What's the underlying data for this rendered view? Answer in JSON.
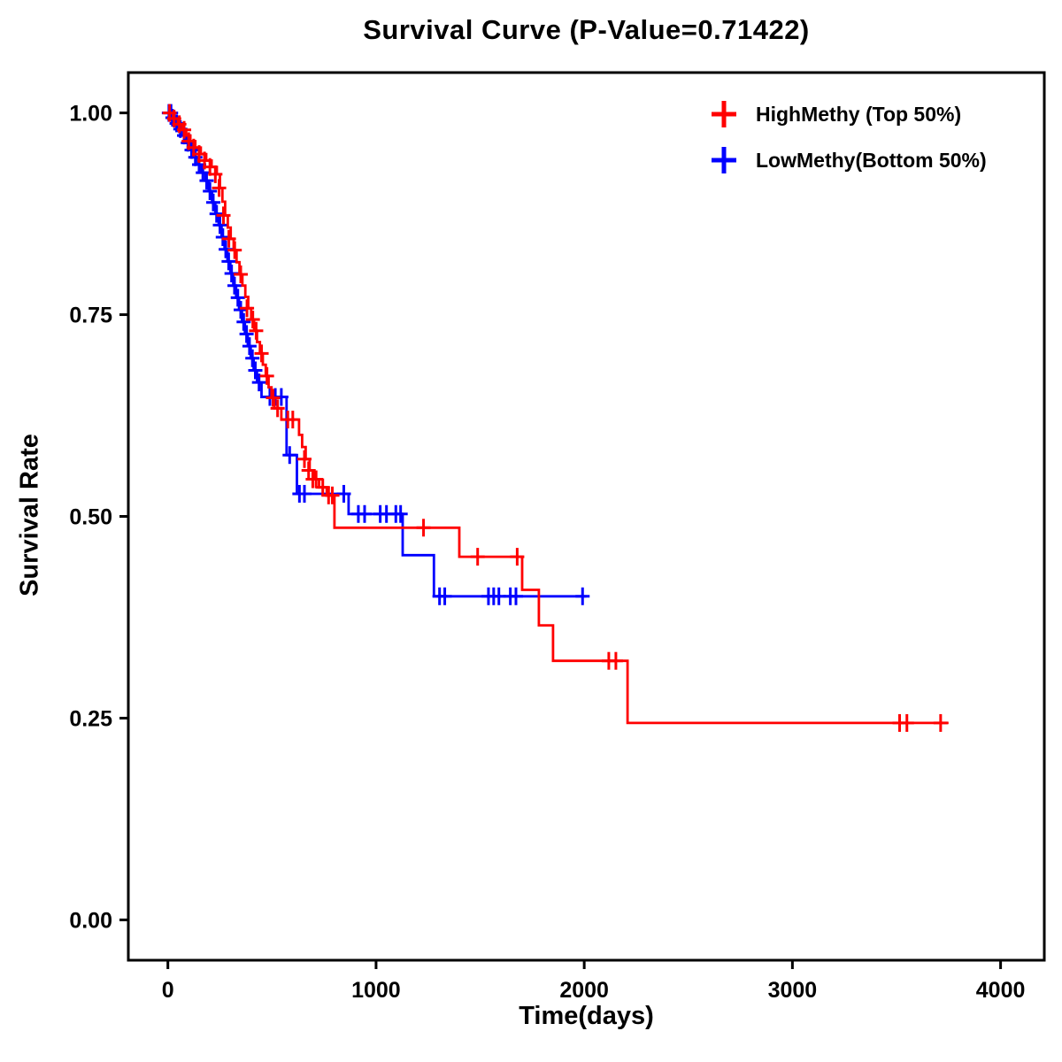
{
  "title": "Survival Curve (P-Value=0.71422)",
  "chart_data": {
    "type": "line",
    "subtype": "kaplan_meier_step",
    "title": "Survival Curve (P-Value=0.71422)",
    "p_value": "0.71422",
    "xlabel": "Time(days)",
    "ylabel": "Survival Rate",
    "xlim": [
      -190,
      4210
    ],
    "ylim": [
      -0.05,
      1.05
    ],
    "xticks": [
      0,
      1000,
      2000,
      3000,
      4000
    ],
    "xtick_labels": [
      "0",
      "1000",
      "2000",
      "3000",
      "4000"
    ],
    "yticks": [
      0,
      0.25,
      0.5,
      0.75,
      1.0
    ],
    "ytick_labels": [
      "0.00",
      "0.25",
      "0.50",
      "0.75",
      "1.00"
    ],
    "grid": false,
    "legend_position": "top-right",
    "series": [
      {
        "id": "highmethy",
        "name": "HighMethy (Top 50%)",
        "color": "#FF0000",
        "end_time": 3750,
        "steps": [
          [
            0,
            1.0
          ],
          [
            25,
            0.993
          ],
          [
            48,
            0.986
          ],
          [
            68,
            0.979
          ],
          [
            88,
            0.972
          ],
          [
            108,
            0.965
          ],
          [
            132,
            0.957
          ],
          [
            158,
            0.949
          ],
          [
            184,
            0.941
          ],
          [
            210,
            0.933
          ],
          [
            235,
            0.924
          ],
          [
            250,
            0.907
          ],
          [
            262,
            0.89
          ],
          [
            275,
            0.873
          ],
          [
            288,
            0.858
          ],
          [
            302,
            0.844
          ],
          [
            316,
            0.83
          ],
          [
            330,
            0.815
          ],
          [
            344,
            0.8
          ],
          [
            358,
            0.786
          ],
          [
            372,
            0.772
          ],
          [
            386,
            0.758
          ],
          [
            400,
            0.744
          ],
          [
            414,
            0.73
          ],
          [
            428,
            0.716
          ],
          [
            442,
            0.702
          ],
          [
            456,
            0.688
          ],
          [
            470,
            0.674
          ],
          [
            484,
            0.66
          ],
          [
            498,
            0.647
          ],
          [
            512,
            0.634
          ],
          [
            545,
            0.62
          ],
          [
            630,
            0.601
          ],
          [
            645,
            0.586
          ],
          [
            662,
            0.571
          ],
          [
            681,
            0.557
          ],
          [
            702,
            0.546
          ],
          [
            726,
            0.536
          ],
          [
            763,
            0.526
          ],
          [
            800,
            0.486
          ],
          [
            1400,
            0.45
          ],
          [
            1702,
            0.409
          ],
          [
            1782,
            0.365
          ],
          [
            1850,
            0.321
          ],
          [
            2208,
            0.244
          ]
        ],
        "censors": [
          [
            8,
            1.0
          ],
          [
            30,
            0.993
          ],
          [
            55,
            0.986
          ],
          [
            78,
            0.979
          ],
          [
            100,
            0.965
          ],
          [
            124,
            0.957
          ],
          [
            150,
            0.949
          ],
          [
            176,
            0.941
          ],
          [
            202,
            0.933
          ],
          [
            228,
            0.924
          ],
          [
            246,
            0.907
          ],
          [
            267,
            0.873
          ],
          [
            293,
            0.844
          ],
          [
            321,
            0.83
          ],
          [
            350,
            0.8
          ],
          [
            380,
            0.758
          ],
          [
            408,
            0.744
          ],
          [
            424,
            0.73
          ],
          [
            450,
            0.702
          ],
          [
            476,
            0.674
          ],
          [
            505,
            0.647
          ],
          [
            527,
            0.634
          ],
          [
            576,
            0.62
          ],
          [
            600,
            0.62
          ],
          [
            656,
            0.571
          ],
          [
            676,
            0.557
          ],
          [
            696,
            0.546
          ],
          [
            712,
            0.546
          ],
          [
            744,
            0.536
          ],
          [
            772,
            0.526
          ],
          [
            790,
            0.526
          ],
          [
            1228,
            0.486
          ],
          [
            1488,
            0.45
          ],
          [
            1678,
            0.45
          ],
          [
            2118,
            0.321
          ],
          [
            2152,
            0.321
          ],
          [
            3515,
            0.244
          ],
          [
            3550,
            0.244
          ],
          [
            3712,
            0.244
          ]
        ]
      },
      {
        "id": "lowmethy",
        "name": "LowMethy(Bottom 50%)",
        "color": "#0000FF",
        "end_time": 2010,
        "steps": [
          [
            0,
            1.0
          ],
          [
            18,
            0.994
          ],
          [
            36,
            0.987
          ],
          [
            54,
            0.98
          ],
          [
            72,
            0.972
          ],
          [
            90,
            0.963
          ],
          [
            108,
            0.954
          ],
          [
            126,
            0.945
          ],
          [
            144,
            0.936
          ],
          [
            162,
            0.926
          ],
          [
            180,
            0.916
          ],
          [
            196,
            0.903
          ],
          [
            212,
            0.889
          ],
          [
            228,
            0.875
          ],
          [
            244,
            0.861
          ],
          [
            258,
            0.846
          ],
          [
            272,
            0.831
          ],
          [
            286,
            0.816
          ],
          [
            300,
            0.801
          ],
          [
            314,
            0.786
          ],
          [
            328,
            0.771
          ],
          [
            342,
            0.756
          ],
          [
            356,
            0.741
          ],
          [
            370,
            0.726
          ],
          [
            384,
            0.711
          ],
          [
            398,
            0.696
          ],
          [
            412,
            0.681
          ],
          [
            428,
            0.666
          ],
          [
            450,
            0.648
          ],
          [
            570,
            0.576
          ],
          [
            620,
            0.528
          ],
          [
            868,
            0.503
          ],
          [
            1128,
            0.452
          ],
          [
            1278,
            0.401
          ]
        ],
        "censors": [
          [
            5,
            1.0
          ],
          [
            15,
            1.0
          ],
          [
            22,
            0.994
          ],
          [
            42,
            0.987
          ],
          [
            60,
            0.98
          ],
          [
            78,
            0.972
          ],
          [
            96,
            0.963
          ],
          [
            114,
            0.954
          ],
          [
            132,
            0.945
          ],
          [
            150,
            0.936
          ],
          [
            168,
            0.926
          ],
          [
            186,
            0.916
          ],
          [
            202,
            0.903
          ],
          [
            218,
            0.889
          ],
          [
            234,
            0.875
          ],
          [
            250,
            0.861
          ],
          [
            264,
            0.846
          ],
          [
            278,
            0.831
          ],
          [
            292,
            0.816
          ],
          [
            306,
            0.801
          ],
          [
            320,
            0.786
          ],
          [
            336,
            0.771
          ],
          [
            350,
            0.756
          ],
          [
            364,
            0.741
          ],
          [
            378,
            0.726
          ],
          [
            392,
            0.711
          ],
          [
            406,
            0.696
          ],
          [
            420,
            0.681
          ],
          [
            438,
            0.666
          ],
          [
            490,
            0.648
          ],
          [
            516,
            0.648
          ],
          [
            545,
            0.648
          ],
          [
            585,
            0.576
          ],
          [
            632,
            0.528
          ],
          [
            656,
            0.528
          ],
          [
            845,
            0.528
          ],
          [
            915,
            0.503
          ],
          [
            945,
            0.503
          ],
          [
            1020,
            0.503
          ],
          [
            1050,
            0.503
          ],
          [
            1095,
            0.503
          ],
          [
            1118,
            0.503
          ],
          [
            1305,
            0.401
          ],
          [
            1330,
            0.401
          ],
          [
            1540,
            0.401
          ],
          [
            1565,
            0.401
          ],
          [
            1590,
            0.401
          ],
          [
            1645,
            0.401
          ],
          [
            1672,
            0.401
          ],
          [
            1992,
            0.401
          ]
        ]
      }
    ]
  }
}
